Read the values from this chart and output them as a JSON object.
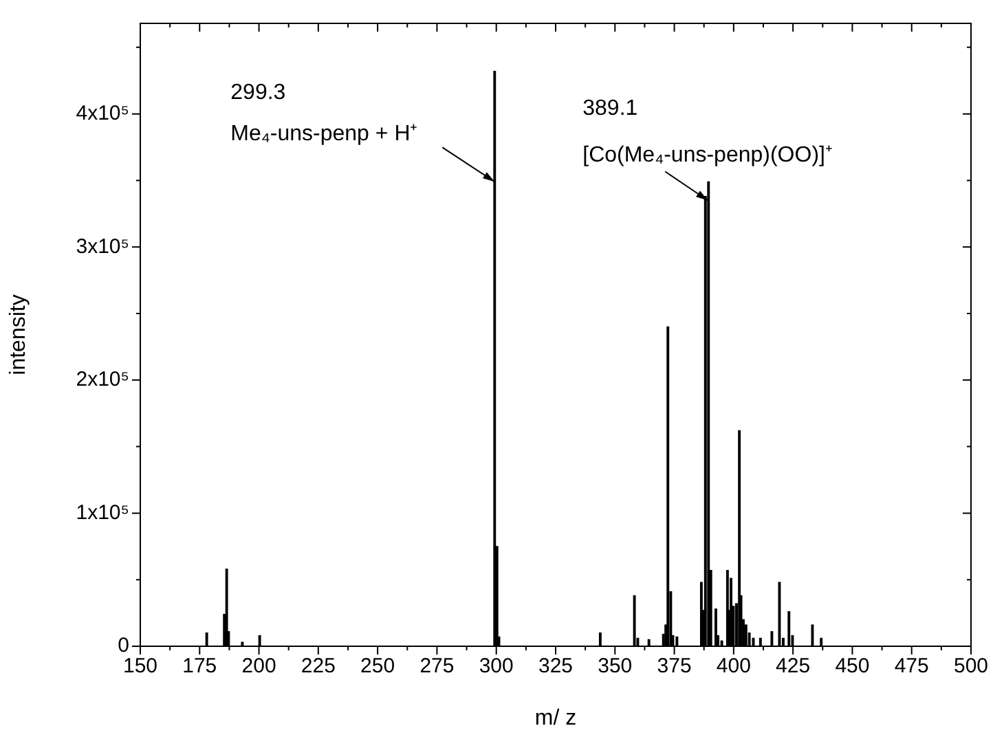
{
  "chart_data": {
    "type": "bar",
    "xlabel": "m/ z",
    "ylabel": "intensity",
    "color": "#000000",
    "x": [
      178.0,
      185.4,
      186.4,
      187.2,
      193.0,
      200.3,
      299.3,
      300.3,
      301.1,
      343.8,
      358.2,
      359.6,
      364.3,
      370.4,
      371.4,
      372.3,
      373.5,
      374.4,
      376.1,
      386.4,
      387.2,
      388.1,
      389.4,
      390.4,
      392.5,
      393.4,
      395.0,
      397.4,
      398.0,
      398.9,
      399.9,
      401.2,
      402.4,
      403.1,
      404.1,
      405.2,
      406.6,
      408.3,
      411.3,
      416.1,
      419.3,
      420.9,
      423.3,
      424.8,
      433.2,
      436.9
    ],
    "values": [
      10000,
      24000,
      58000,
      11000,
      3000,
      8000,
      432000,
      75000,
      7000,
      10000,
      38000,
      6000,
      5000,
      9000,
      16000,
      240000,
      41000,
      8000,
      7000,
      48000,
      27000,
      338000,
      349000,
      57000,
      28000,
      8000,
      4000,
      57000,
      27000,
      51000,
      30000,
      32000,
      162000,
      38000,
      20000,
      16000,
      10000,
      6000,
      6000,
      11000,
      48000,
      6000,
      26000,
      8000,
      16000,
      6000
    ],
    "xlim": [
      150,
      500
    ],
    "xticks": [
      150,
      {
        "value": 162.5,
        "label": null
      },
      175,
      {
        "value": 187.5,
        "label": null
      },
      200,
      {
        "value": 212.5,
        "label": null
      },
      225,
      {
        "value": 237.5,
        "label": null
      },
      250,
      {
        "value": 262.5,
        "label": null
      },
      275,
      {
        "value": 287.5,
        "label": null
      },
      300,
      {
        "value": 312.5,
        "label": null
      },
      325,
      {
        "value": 337.5,
        "label": null
      },
      350,
      {
        "value": 362.5,
        "label": null
      },
      375,
      {
        "value": 387.5,
        "label": null
      },
      400,
      {
        "value": 412.5,
        "label": null
      },
      425,
      {
        "value": 437.5,
        "label": null
      },
      450,
      {
        "value": 462.5,
        "label": null
      },
      475,
      {
        "value": 487.5,
        "label": null
      },
      500
    ],
    "ylim": [
      0,
      468000
    ],
    "yticks": [
      0,
      {
        "value": 50000,
        "label": null
      },
      {
        "value": 100000,
        "label": "1x10⁵"
      },
      {
        "value": 150000,
        "label": null
      },
      {
        "value": 200000,
        "label": "2x10⁵"
      },
      {
        "value": 250000,
        "label": null
      },
      {
        "value": 300000,
        "label": "3x10⁵"
      },
      {
        "value": 350000,
        "label": null
      },
      {
        "value": 400000,
        "label": "4x10⁵"
      },
      {
        "value": 450000,
        "label": null
      }
    ],
    "annotations": [
      {
        "text": "299.3\nMe₄-uns-penp + H⁺",
        "x": 299.3,
        "y": 349000
      },
      {
        "text": "389.1\n[Co(Me₄-uns-penp)(OO)]⁺",
        "x": 389.1,
        "y": 335000
      }
    ],
    "legend": false
  }
}
